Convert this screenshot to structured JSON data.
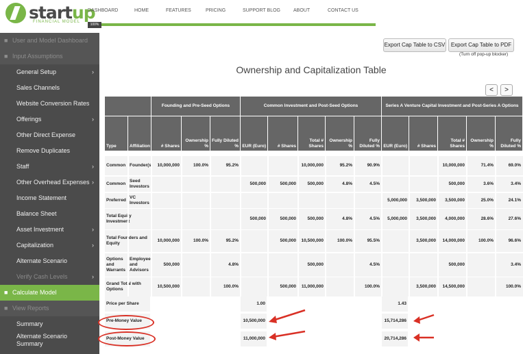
{
  "header": {
    "logo_main": "start",
    "logo_accent": "up",
    "logo_sub": "FINANCIAL MODEL",
    "nav": [
      "DASHBOARD",
      "HOME",
      "FEATURES",
      "PRICING",
      "SUPPORT BLOG",
      "ABOUT",
      "CONTACT US"
    ],
    "progress_label": "100%",
    "progress_value": 100
  },
  "sidebar": {
    "section_dashboard": "User and Model Dashboard",
    "section_inputs": "Input Assumptions",
    "items": [
      {
        "label": "General Setup",
        "chevron": true
      },
      {
        "label": "Sales Channels",
        "chevron": false
      },
      {
        "label": "Website Conversion Rates",
        "chevron": false
      },
      {
        "label": "Offerings",
        "chevron": true
      },
      {
        "label": "Other Direct Expense",
        "chevron": false
      },
      {
        "label": "Remove Duplicates",
        "chevron": false
      },
      {
        "label": "Staff",
        "chevron": true
      },
      {
        "label": "Other Overhead Expenses",
        "chevron": true
      },
      {
        "label": "Income Statement",
        "chevron": false
      },
      {
        "label": "Balance Sheet",
        "chevron": false
      },
      {
        "label": "Asset Investment",
        "chevron": true
      },
      {
        "label": "Capitalization",
        "chevron": true
      },
      {
        "label": "Alternate Scenario",
        "chevron": false
      },
      {
        "label": "Verify Cash Levels",
        "chevron": true
      }
    ],
    "calculate": "Calculate Model",
    "section_reports": "View Reports",
    "report_items": [
      "Summary",
      "Alternate Scenario Summary"
    ],
    "chevron_glyph": "›"
  },
  "toolbar": {
    "export_csv": "Export Cap Table to CSV",
    "export_pdf": "Export Cap Table to PDF",
    "popup_note": "(Turn off pop-up blocker)",
    "prev": "<",
    "next": ">"
  },
  "page_title": "Ownership and Capitalization Table",
  "table": {
    "group_headers": [
      "Founding and Pre-Seed Options",
      "Common Investment and Post-Seed Options",
      "Series A Venture Capital Investment and Post-Series A Options"
    ],
    "columns": [
      "Type",
      "Affiliation",
      "# Shares",
      "Ownership %",
      "Fully Diluted %",
      "EUR (Euro)",
      "# Shares",
      "Total # Shares",
      "Ownership %",
      "Fully Diluted %",
      "EUR (Euro)",
      "# Shares",
      "Total # Shares",
      "Ownership %",
      "Fully Diluted %"
    ],
    "rows": [
      {
        "type": "Common",
        "aff": "Founder(s)",
        "v": [
          "10,000,000",
          "100.0%",
          "95.2%",
          "",
          "",
          "10,000,000",
          "95.2%",
          "90.9%",
          "",
          "",
          "10,000,000",
          "71.4%",
          "69.0%"
        ]
      },
      {
        "type": "Common",
        "aff": "Seed Investors",
        "v": [
          "",
          "",
          "",
          "500,000",
          "500,000",
          "500,000",
          "4.8%",
          "4.5%",
          "",
          "",
          "500,000",
          "3.6%",
          "3.4%"
        ]
      },
      {
        "type": "Preferred",
        "aff": "VC Investors",
        "v": [
          "",
          "",
          "",
          "",
          "",
          "",
          "",
          "",
          "5,000,000",
          "3,500,000",
          "3,500,000",
          "25.0%",
          "24.1%"
        ]
      },
      {
        "type": "Total Equity Investment",
        "aff": "",
        "v": [
          "",
          "",
          "",
          "500,000",
          "500,000",
          "500,000",
          "4.8%",
          "4.5%",
          "5,000,000",
          "3,500,000",
          "4,000,000",
          "28.6%",
          "27.6%"
        ]
      },
      {
        "type": "Total Founders and Equity",
        "aff": "",
        "v": [
          "10,000,000",
          "100.0%",
          "95.2%",
          "",
          "500,000",
          "10,500,000",
          "100.0%",
          "95.5%",
          "",
          "3,500,000",
          "14,000,000",
          "100.0%",
          "96.6%"
        ]
      },
      {
        "type": "Options and Warrants",
        "aff": "Employees and Advisors",
        "v": [
          "500,000",
          "",
          "4.8%",
          "",
          "",
          "500,000",
          "",
          "4.5%",
          "",
          "",
          "500,000",
          "",
          "3.4%"
        ]
      },
      {
        "type": "Grand Total with Options",
        "aff": "",
        "v": [
          "10,500,000",
          "",
          "100.0%",
          "",
          "500,000",
          "11,000,000",
          "",
          "100.0%",
          "",
          "3,500,000",
          "14,500,000",
          "",
          "100.0%"
        ]
      }
    ],
    "summary": [
      {
        "label": "Price per Share",
        "seed": "1.00",
        "series_a": "1.43"
      },
      {
        "label": "Pre-Money Value",
        "seed": "10,500,000",
        "series_a": "15,714,286"
      },
      {
        "label": "Post-Money Value",
        "seed": "11,000,000",
        "series_a": "20,714,286"
      }
    ]
  },
  "colors": {
    "accent": "#7ab648",
    "sidebar": "#4b4b4b",
    "table_header": "#666666",
    "annotation": "#d93025"
  }
}
